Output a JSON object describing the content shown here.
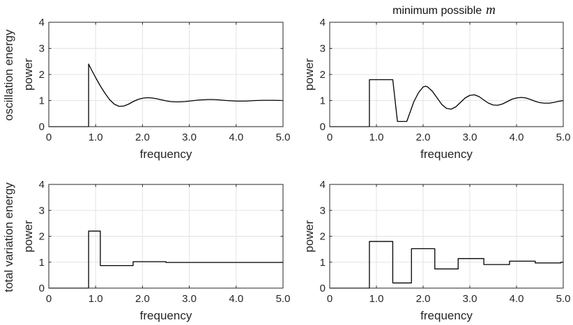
{
  "figure": {
    "column_title_prefix": "minimum possible",
    "column_title_variable": "m",
    "row_labels": [
      "oscillation energy",
      "total variation energy"
    ]
  },
  "chart_data": [
    {
      "type": "line",
      "title": "",
      "row_label": "oscillation energy",
      "xlabel": "frequency",
      "ylabel": "power",
      "xlim": [
        0,
        5
      ],
      "ylim": [
        0,
        4
      ],
      "xticks": [
        0,
        1,
        2,
        3,
        4,
        5
      ],
      "xtick_labels": [
        "0",
        "1.0",
        "2.0",
        "3.0",
        "4.0",
        "5.0"
      ],
      "yticks": [
        0,
        1,
        2,
        3,
        4
      ],
      "ytick_labels": [
        "0",
        "1",
        "2",
        "3",
        "4"
      ],
      "grid": true,
      "x": [
        0,
        0.85,
        0.85,
        0.9,
        1.0,
        1.1,
        1.2,
        1.3,
        1.4,
        1.5,
        1.6,
        1.7,
        1.8,
        1.9,
        2.0,
        2.1,
        2.2,
        2.3,
        2.4,
        2.5,
        2.6,
        2.7,
        2.8,
        2.9,
        3.0,
        3.2,
        3.4,
        3.5,
        3.6,
        3.8,
        4.0,
        4.2,
        4.4,
        4.6,
        4.8,
        5.0
      ],
      "y": [
        0,
        0,
        2.4,
        2.22,
        1.88,
        1.56,
        1.28,
        1.03,
        0.86,
        0.78,
        0.79,
        0.86,
        0.96,
        1.04,
        1.09,
        1.11,
        1.1,
        1.07,
        1.03,
        0.99,
        0.96,
        0.95,
        0.95,
        0.96,
        0.98,
        1.02,
        1.04,
        1.04,
        1.03,
        1.0,
        0.98,
        0.98,
        1.0,
        1.01,
        1.01,
        1.0
      ]
    },
    {
      "type": "line",
      "title": "minimum possible m",
      "row_label": "",
      "xlabel": "frequency",
      "ylabel": "power",
      "xlim": [
        0,
        5
      ],
      "ylim": [
        0,
        4
      ],
      "xticks": [
        0,
        1,
        2,
        3,
        4,
        5
      ],
      "xtick_labels": [
        "0",
        "1.0",
        "2.0",
        "3.0",
        "4.0",
        "5.0"
      ],
      "yticks": [
        0,
        1,
        2,
        3,
        4
      ],
      "ytick_labels": [
        "0",
        "1",
        "2",
        "3",
        "4"
      ],
      "grid": true,
      "x": [
        0,
        0.85,
        0.85,
        1.35,
        1.4,
        1.45,
        1.65,
        1.7,
        1.8,
        1.9,
        2.0,
        2.05,
        2.1,
        2.2,
        2.3,
        2.4,
        2.5,
        2.6,
        2.7,
        2.8,
        2.9,
        3.0,
        3.1,
        3.2,
        3.3,
        3.4,
        3.5,
        3.6,
        3.7,
        3.8,
        3.9,
        4.0,
        4.1,
        4.2,
        4.3,
        4.4,
        4.5,
        4.6,
        4.7,
        4.8,
        4.9,
        5.0
      ],
      "y": [
        0,
        0,
        1.8,
        1.8,
        1.0,
        0.2,
        0.2,
        0.45,
        0.95,
        1.3,
        1.52,
        1.55,
        1.52,
        1.35,
        1.1,
        0.85,
        0.7,
        0.67,
        0.76,
        0.93,
        1.1,
        1.2,
        1.22,
        1.15,
        1.02,
        0.9,
        0.83,
        0.82,
        0.87,
        0.96,
        1.05,
        1.1,
        1.12,
        1.1,
        1.04,
        0.97,
        0.92,
        0.9,
        0.9,
        0.93,
        0.97,
        1.0
      ]
    },
    {
      "type": "line",
      "title": "",
      "row_label": "total variation energy",
      "xlabel": "frequency",
      "ylabel": "power",
      "xlim": [
        0,
        5
      ],
      "ylim": [
        0,
        4
      ],
      "xticks": [
        0,
        1,
        2,
        3,
        4,
        5
      ],
      "xtick_labels": [
        "0",
        "1.0",
        "2.0",
        "3.0",
        "4.0",
        "5.0"
      ],
      "yticks": [
        0,
        1,
        2,
        3,
        4
      ],
      "ytick_labels": [
        "0",
        "1",
        "2",
        "3",
        "4"
      ],
      "grid": true,
      "x": [
        0,
        0.85,
        0.85,
        1.1,
        1.1,
        1.8,
        1.8,
        2.5,
        2.5,
        5.0
      ],
      "y": [
        0,
        0,
        2.2,
        2.2,
        0.87,
        0.87,
        1.02,
        1.02,
        0.99,
        0.99
      ]
    },
    {
      "type": "line",
      "title": "",
      "row_label": "",
      "xlabel": "frequency",
      "ylabel": "power",
      "xlim": [
        0,
        5
      ],
      "ylim": [
        0,
        4
      ],
      "xticks": [
        0,
        1,
        2,
        3,
        4,
        5
      ],
      "xtick_labels": [
        "0",
        "1.0",
        "2.0",
        "3.0",
        "4.0",
        "5.0"
      ],
      "yticks": [
        0,
        1,
        2,
        3,
        4
      ],
      "ytick_labels": [
        "0",
        "1",
        "2",
        "3",
        "4"
      ],
      "grid": true,
      "x": [
        0,
        0.85,
        0.85,
        1.35,
        1.35,
        1.75,
        1.75,
        2.25,
        2.25,
        2.75,
        2.75,
        3.3,
        3.3,
        3.85,
        3.85,
        4.4,
        4.4,
        4.95,
        4.95,
        5.0
      ],
      "y": [
        0,
        0,
        1.8,
        1.8,
        0.2,
        0.2,
        1.52,
        1.52,
        0.74,
        0.74,
        1.14,
        1.14,
        0.91,
        0.91,
        1.04,
        1.04,
        0.97,
        0.97,
        1.0,
        1.0
      ]
    }
  ]
}
